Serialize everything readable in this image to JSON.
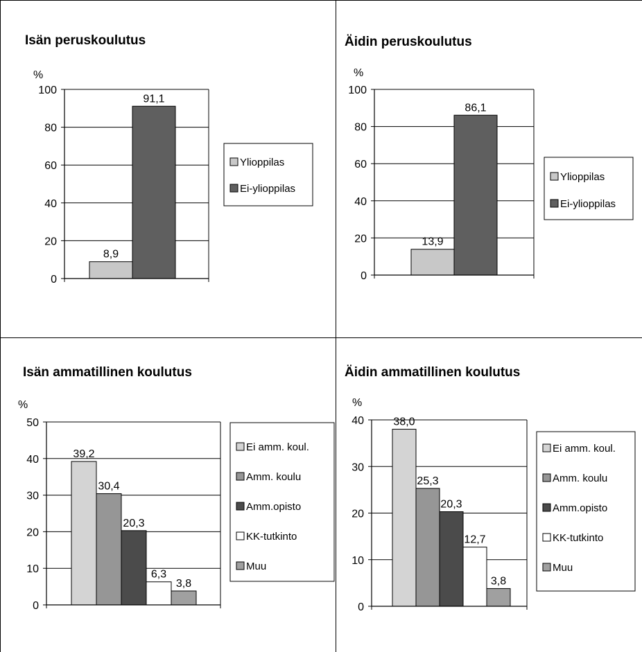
{
  "colors": {
    "light_gray": "#c8c8c8",
    "dark_gray": "#5f5f5f",
    "very_light_gray": "#d4d4d4",
    "mid_gray": "#969696",
    "charcoal": "#4b4b4b",
    "white": "#ffffff",
    "gray_muu": "#a0a0a0"
  },
  "chart_data": [
    {
      "type": "bar",
      "title": "Isän peruskoulutus",
      "ylabel": "%",
      "ylim": [
        0,
        100
      ],
      "yticks": [
        "0",
        "20",
        "40",
        "60",
        "80",
        "100"
      ],
      "grid": true,
      "legend": "right",
      "series": [
        {
          "name": "Ylioppilas",
          "value": 8.9,
          "label": "8,9",
          "color": "#c8c8c8"
        },
        {
          "name": "Ei-ylioppilas",
          "value": 91.1,
          "label": "91,1",
          "color": "#5f5f5f"
        }
      ]
    },
    {
      "type": "bar",
      "title": "Äidin peruskoulutus",
      "ylabel": "%",
      "ylim": [
        0,
        100
      ],
      "yticks": [
        "0",
        "20",
        "40",
        "60",
        "80",
        "100"
      ],
      "grid": true,
      "legend": "right",
      "series": [
        {
          "name": "Ylioppilas",
          "value": 13.9,
          "label": "13,9",
          "color": "#c8c8c8"
        },
        {
          "name": "Ei-ylioppilas",
          "value": 86.1,
          "label": "86,1",
          "color": "#5f5f5f"
        }
      ]
    },
    {
      "type": "bar",
      "title": "Isän ammatillinen koulutus",
      "ylabel": "%",
      "ylim": [
        0,
        50
      ],
      "yticks": [
        "0",
        "10",
        "20",
        "30",
        "40",
        "50"
      ],
      "grid": true,
      "legend": "right",
      "series": [
        {
          "name": "Ei amm. koul.",
          "value": 39.2,
          "label": "39,2",
          "color": "#d4d4d4"
        },
        {
          "name": "Amm. koulu",
          "value": 30.4,
          "label": "30,4",
          "color": "#969696"
        },
        {
          "name": "Amm.opisto",
          "value": 20.3,
          "label": "20,3",
          "color": "#4b4b4b"
        },
        {
          "name": "KK-tutkinto",
          "value": 6.3,
          "label": "6,3",
          "color": "#ffffff"
        },
        {
          "name": "Muu",
          "value": 3.8,
          "label": "3,8",
          "color": "#a0a0a0"
        }
      ]
    },
    {
      "type": "bar",
      "title": "Äidin ammatillinen koulutus",
      "ylabel": "%",
      "ylim": [
        0,
        40
      ],
      "yticks": [
        "0",
        "10",
        "20",
        "30",
        "40"
      ],
      "grid": true,
      "legend": "right",
      "series": [
        {
          "name": "Ei amm. koul.",
          "value": 38.0,
          "label": "38,0",
          "color": "#d4d4d4"
        },
        {
          "name": "Amm. koulu",
          "value": 25.3,
          "label": "25,3",
          "color": "#969696"
        },
        {
          "name": "Amm.opisto",
          "value": 20.3,
          "label": "20,3",
          "color": "#4b4b4b"
        },
        {
          "name": "KK-tutkinto",
          "value": 12.7,
          "label": "12,7",
          "color": "#ffffff"
        },
        {
          "name": "Muu",
          "value": 3.8,
          "label": "3,8",
          "color": "#a0a0a0"
        }
      ]
    }
  ]
}
